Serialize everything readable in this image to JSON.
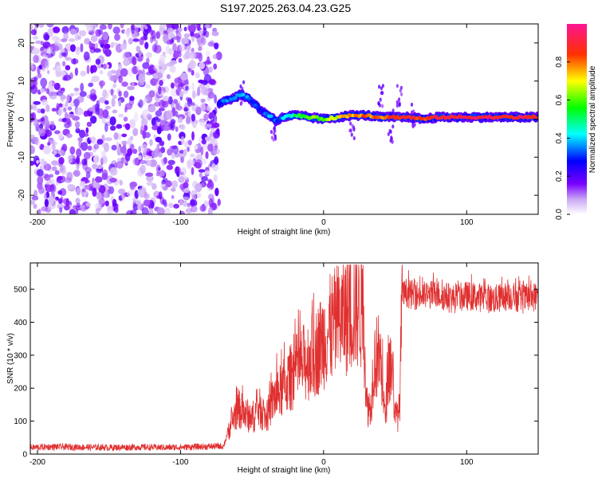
{
  "title": "S197.2025.263.04.23.G25",
  "chart_data": [
    {
      "type": "heatmap",
      "title": "S197.2025.263.04.23.G25",
      "xlabel": "Height of straight line (km)",
      "ylabel": "Frequency (Hz)",
      "xlim": [
        -205,
        150
      ],
      "ylim": [
        -25,
        25
      ],
      "xticks": [
        -200,
        -100,
        0,
        100
      ],
      "yticks": [
        -20,
        -10,
        0,
        10,
        20
      ],
      "noise_region_x": [
        -205,
        -73
      ],
      "ridge": {
        "x": [
          -73,
          -68,
          -63,
          -58,
          -53,
          -48,
          -43,
          -38,
          -33,
          -28,
          -20,
          -10,
          0,
          10,
          20,
          30,
          40,
          50,
          60,
          70,
          80,
          90,
          100,
          110,
          120,
          130,
          140,
          150
        ],
        "freq": [
          4,
          5,
          5.5,
          6.5,
          5.5,
          4,
          2,
          1,
          -0.5,
          0.5,
          1,
          0.5,
          0,
          0.5,
          1,
          1,
          0.5,
          0.5,
          0.5,
          0,
          0.5,
          0.5,
          0.5,
          0.5,
          0.5,
          0.5,
          0.5,
          0.5
        ],
        "amplitude": [
          0.3,
          0.35,
          0.35,
          0.4,
          0.35,
          0.3,
          0.3,
          0.35,
          0.3,
          0.4,
          0.5,
          0.6,
          0.6,
          0.7,
          0.75,
          0.8,
          0.8,
          0.85,
          0.85,
          0.85,
          0.9,
          0.9,
          0.9,
          0.9,
          0.9,
          0.9,
          0.9,
          0.9
        ]
      },
      "colorbar": {
        "label": "Normalized spectral amplitude",
        "range": [
          0.0,
          1.0
        ],
        "ticks": [
          "0.0",
          "0.2",
          "0.4",
          "0.6",
          "0.8"
        ]
      }
    },
    {
      "type": "line",
      "xlabel": "Height of straight line (km)",
      "ylabel": "SNR (10 * v/v)",
      "xlim": [
        -205,
        150
      ],
      "ylim": [
        0,
        580
      ],
      "xticks": [
        -200,
        -100,
        0,
        100
      ],
      "yticks": [
        0,
        100,
        200,
        300,
        400,
        500
      ],
      "color": "#e03030",
      "series": [
        {
          "name": "SNR",
          "x": [
            -205,
            -190,
            -170,
            -150,
            -130,
            -110,
            -90,
            -70,
            -65,
            -60,
            -55,
            -50,
            -45,
            -40,
            -35,
            -30,
            -25,
            -20,
            -15,
            -10,
            -5,
            0,
            5,
            10,
            15,
            20,
            25,
            28,
            30,
            33,
            35,
            38,
            40,
            43,
            45,
            48,
            50,
            53,
            55,
            58,
            60,
            70,
            80,
            90,
            100,
            110,
            120,
            130,
            140,
            150
          ],
          "values": [
            20,
            22,
            21,
            20,
            21,
            20,
            22,
            24,
            90,
            140,
            120,
            110,
            140,
            110,
            170,
            190,
            220,
            250,
            270,
            290,
            310,
            350,
            380,
            400,
            420,
            440,
            460,
            420,
            150,
            140,
            280,
            300,
            280,
            100,
            260,
            270,
            110,
            130,
            480,
            490,
            485,
            480,
            485,
            470,
            480,
            475,
            470,
            480,
            470,
            480
          ]
        }
      ]
    }
  ]
}
